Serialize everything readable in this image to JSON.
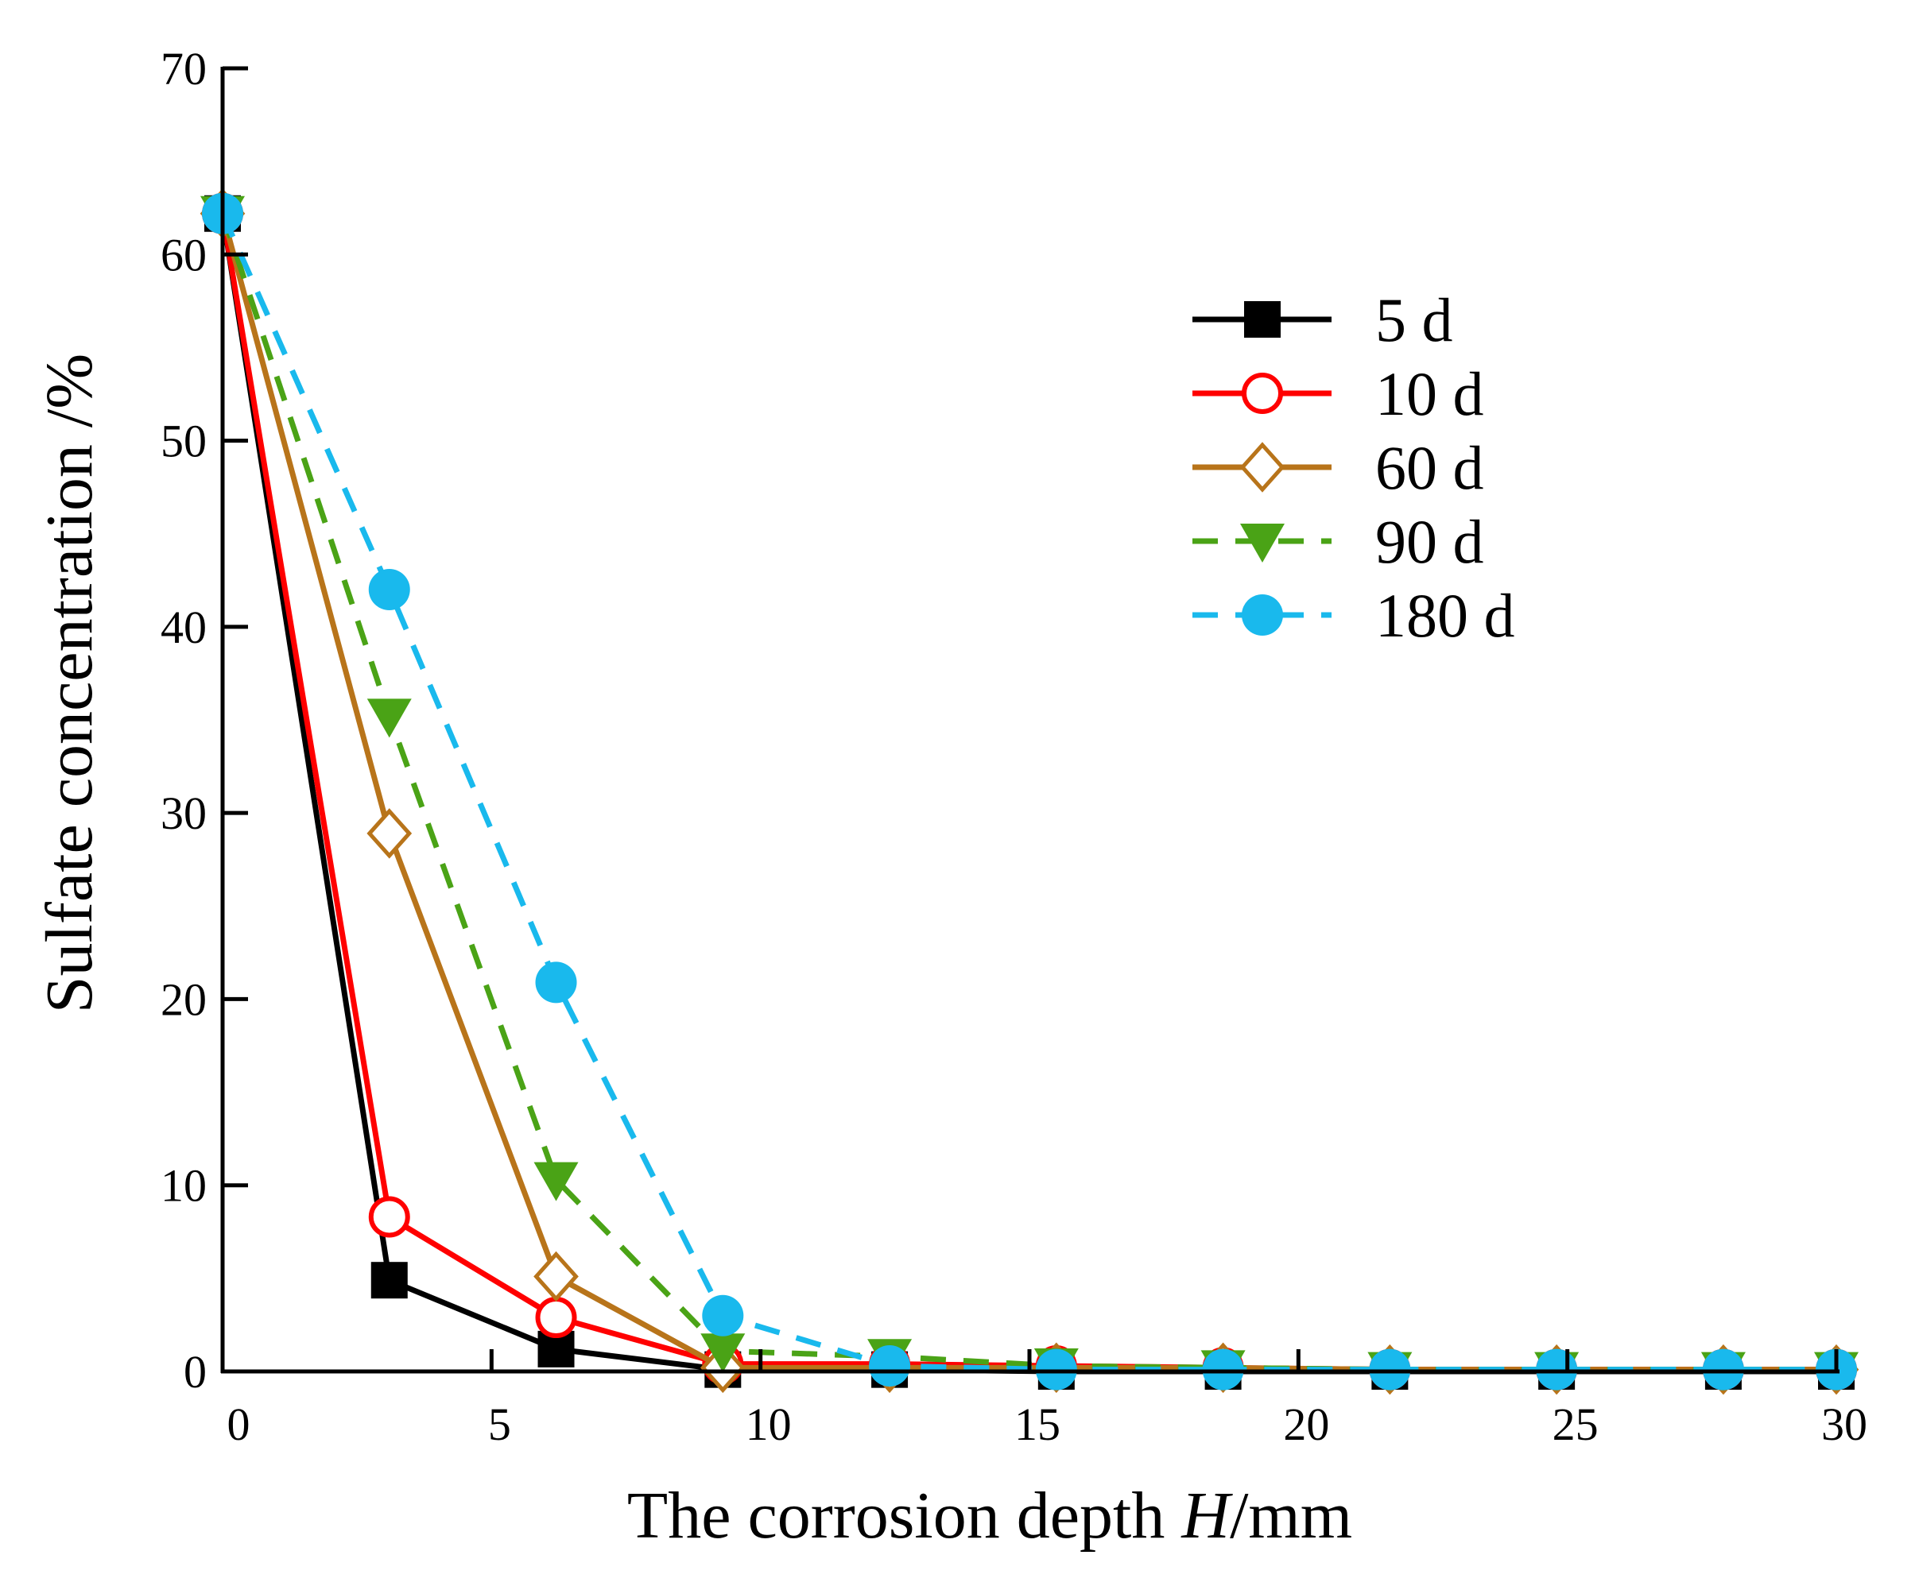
{
  "chart_data": {
    "type": "line",
    "title": "",
    "xlabel_prefix": "The corrosion depth ",
    "xlabel_var": "H",
    "xlabel_suffix": "/mm",
    "ylabel": "Sulfate concentration /%",
    "xlim": [
      0,
      30
    ],
    "ylim": [
      0,
      70
    ],
    "x_ticks": [
      0,
      5,
      10,
      15,
      20,
      25,
      30
    ],
    "y_ticks": [
      0,
      10,
      20,
      30,
      40,
      50,
      60,
      70
    ],
    "x_tick_labels": [
      "0",
      "5",
      "10",
      "15",
      "20",
      "25",
      "30"
    ],
    "y_tick_labels": [
      "0",
      "10",
      "20",
      "30",
      "40",
      "50",
      "60",
      "70"
    ],
    "grid": false,
    "legend_position": "top-right",
    "x": [
      0,
      3.1,
      6.2,
      9.3,
      12.4,
      15.5,
      18.6,
      21.7,
      24.8,
      27.9,
      31
    ],
    "series": [
      {
        "name": "5 d",
        "color": "#000000",
        "marker": "square",
        "line": "solid",
        "values": [
          62.2,
          4.9,
          1.2,
          0.1,
          0.1,
          0.0,
          0.0,
          0.0,
          0.0,
          0.0,
          0.0
        ]
      },
      {
        "name": "10 d",
        "color": "#ff0000",
        "marker": "circle-open",
        "line": "solid",
        "values": [
          62.2,
          8.3,
          2.9,
          0.4,
          0.4,
          0.3,
          0.2,
          0.1,
          0.1,
          0.1,
          0.1
        ]
      },
      {
        "name": "60 d",
        "color": "#b8741a",
        "marker": "diamond-open",
        "line": "solid",
        "values": [
          62.2,
          28.9,
          5.1,
          0.2,
          0.2,
          0.2,
          0.2,
          0.1,
          0.1,
          0.1,
          0.1
        ]
      },
      {
        "name": "90 d",
        "color": "#4aa316",
        "marker": "triangle-down",
        "line": "dashed",
        "values": [
          62.2,
          35.2,
          10.3,
          1.1,
          0.8,
          0.3,
          0.2,
          0.1,
          0.1,
          0.1,
          0.1
        ]
      },
      {
        "name": "180 d",
        "color": "#19b9ed",
        "marker": "circle",
        "line": "dashed",
        "values": [
          62.2,
          42.0,
          20.9,
          3.0,
          0.3,
          0.1,
          0.1,
          0.1,
          0.1,
          0.1,
          0.1
        ]
      }
    ]
  }
}
